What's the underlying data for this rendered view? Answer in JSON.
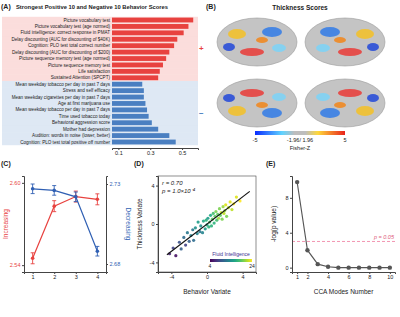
{
  "chart_data": [
    {
      "type": "bar",
      "panel": "(A)",
      "title": "Strongest Positive 10 and Negative 10 Behavior Scores",
      "orientation": "horizontal",
      "categories": [
        "Picture vocabulary test",
        "Picture vocabulary test (age normed)",
        "Fluid intelligence: correct response in PMAT",
        "Delay discounting (AUC for discounting of $40K)",
        "Cognition: PLO test total correct number",
        "Delay discounting (AUC for discounting of $200)",
        "Picture sequence memory test (age normed)",
        "Picture sequence memory test",
        "Life satisfaction",
        "Sustained Attention (SPCPT)",
        "Mean weekday tobacco per day in past 7 days",
        "Stress and self efficacy",
        "Mean weekday cigarettes per day in past 7 days",
        "Age at first marijuana use",
        "Mean weekday tobacco per day in past 7 days",
        "Time used tobacco today",
        "Behavioral aggression score",
        "Mother had depression",
        "Audition: words in noise (lower, better)",
        "Cognition: PLO test total positive off number"
      ],
      "values": [
        0.57,
        0.54,
        0.51,
        0.47,
        0.45,
        0.42,
        0.4,
        0.38,
        0.36,
        0.35,
        0.25,
        0.26,
        0.26,
        0.27,
        0.28,
        0.29,
        0.31,
        0.35,
        0.42,
        0.46
      ],
      "colors": [
        "#e8423f",
        "#e8423f",
        "#e8423f",
        "#e8423f",
        "#e8423f",
        "#e8423f",
        "#e8423f",
        "#e8423f",
        "#e8423f",
        "#e8423f",
        "#4a7fc1",
        "#4a7fc1",
        "#4a7fc1",
        "#4a7fc1",
        "#4a7fc1",
        "#4a7fc1",
        "#4a7fc1",
        "#4a7fc1",
        "#4a7fc1",
        "#4a7fc1"
      ],
      "xlim": [
        0.06,
        0.6
      ],
      "xticks": [
        0.1,
        0.3,
        0.5
      ],
      "annotations": [
        "+",
        "−"
      ]
    },
    {
      "type": "brain_map",
      "panel": "(B)",
      "title": "Thickness Scores",
      "colorbar": {
        "range": [
          -5,
          5
        ],
        "ticks": [
          -5,
          5
        ],
        "label": "Fisher-Z"
      },
      "annotations": [
        "-1.96/ 1.96"
      ]
    },
    {
      "type": "line",
      "panel": "(C)",
      "marker": "circle",
      "x": [
        1,
        2,
        3,
        4
      ],
      "xlim": [
        0.6,
        4.4
      ],
      "xticks": [
        1,
        2,
        3,
        4
      ],
      "ylim": [
        2.535,
        2.605
      ],
      "yticks": [
        2.54,
        {
          "value": 2.6,
          "label": "2.60"
        }
      ],
      "y2lim": [
        2.675,
        2.735
      ],
      "y2ticks": [
        2.68,
        2.73
      ],
      "series": [
        {
          "name": "Increasing",
          "color": "#e8423f",
          "values": [
            2.545,
            2.583,
            2.59,
            2.588
          ],
          "errors": [
            0.004,
            0.004,
            0.004,
            0.004
          ]
        },
        {
          "name": "Decreasing",
          "color": "#2f5fb3",
          "axis": "y2",
          "values": [
            2.727,
            2.726,
            2.722,
            2.688
          ],
          "errors": [
            0.003,
            0.003,
            0.003,
            0.003
          ]
        }
      ]
    },
    {
      "type": "scatter",
      "panel": "(D)",
      "x": [
        -4.2,
        -3.8,
        -3.5,
        -3.1,
        -2.9,
        -2.6,
        -2.4,
        -2.2,
        -2.0,
        -1.8,
        -1.6,
        -1.5,
        -1.3,
        -1.1,
        -1.0,
        -0.8,
        -0.7,
        -0.5,
        -0.4,
        -0.2,
        -0.1,
        0.0,
        0.1,
        0.2,
        0.3,
        0.4,
        0.5,
        0.6,
        0.7,
        0.8,
        0.9,
        1.0,
        1.1,
        1.2,
        1.3,
        1.4,
        1.5,
        1.6,
        1.7,
        1.8,
        1.9,
        2.0,
        2.1,
        2.2,
        2.4,
        2.6,
        2.8,
        3.0,
        3.3,
        3.7
      ],
      "y": [
        -3.1,
        -2.5,
        -3.3,
        -1.9,
        -2.6,
        -1.4,
        -2.2,
        -0.9,
        -1.8,
        -1.2,
        -0.6,
        -1.7,
        -0.4,
        -1.0,
        0.2,
        -0.8,
        -0.2,
        -0.9,
        0.3,
        -0.5,
        0.4,
        -0.1,
        0.6,
        -0.3,
        0.2,
        0.9,
        -0.2,
        0.5,
        1.1,
        0.1,
        0.8,
        1.3,
        0.4,
        1.0,
        0.6,
        1.6,
        0.9,
        1.2,
        0.5,
        1.8,
        1.1,
        1.4,
        2.0,
        0.8,
        1.7,
        2.3,
        1.5,
        2.1,
        2.8,
        2.4
      ],
      "fluid_intelligence": [
        6,
        8,
        5,
        9,
        10,
        11,
        8,
        12,
        10,
        13,
        12,
        11,
        14,
        13,
        15,
        12,
        14,
        13,
        16,
        15,
        17,
        16,
        15,
        17,
        18,
        16,
        17,
        19,
        18,
        17,
        19,
        20,
        18,
        19,
        21,
        20,
        19,
        22,
        20,
        21,
        22,
        21,
        23,
        20,
        22,
        23,
        22,
        24,
        23,
        24
      ],
      "colorbar": {
        "range": [
          4,
          24
        ],
        "ticks": [
          4,
          24
        ],
        "label": "Fluid Intelligence"
      },
      "fit_line": {
        "x": [
          -4.5,
          4.8
        ],
        "y": [
          -3.2,
          3.4
        ]
      },
      "xlabel": "Behavior Variate",
      "ylabel": "Thickness Variate",
      "xlim": [
        -5.5,
        5.5
      ],
      "xticks": [
        -4,
        0,
        4
      ],
      "ylim": [
        -5,
        5
      ],
      "yticks": [
        -4,
        0,
        4
      ],
      "annotations": [
        "r = 0.70",
        "p = 1.0×10⁻⁴"
      ]
    },
    {
      "type": "line",
      "panel": "(E)",
      "color": "#555555",
      "marker": "circle",
      "x": [
        1,
        2,
        3,
        4,
        5,
        6,
        7,
        8,
        9,
        10
      ],
      "values": [
        9.8,
        2.0,
        0.4,
        0.1,
        0,
        0,
        0,
        0,
        0,
        0
      ],
      "xlim": [
        0.5,
        10.5
      ],
      "xticks": [
        1,
        2,
        4,
        6,
        8,
        10
      ],
      "ylim": [
        -0.5,
        10.5
      ],
      "yticks": [
        0,
        4,
        8
      ],
      "xlabel": "CCA Modes Number",
      "ylabel": "-log(p value)",
      "threshold": 3.0,
      "threshold_label": "p = 0.05"
    }
  ]
}
